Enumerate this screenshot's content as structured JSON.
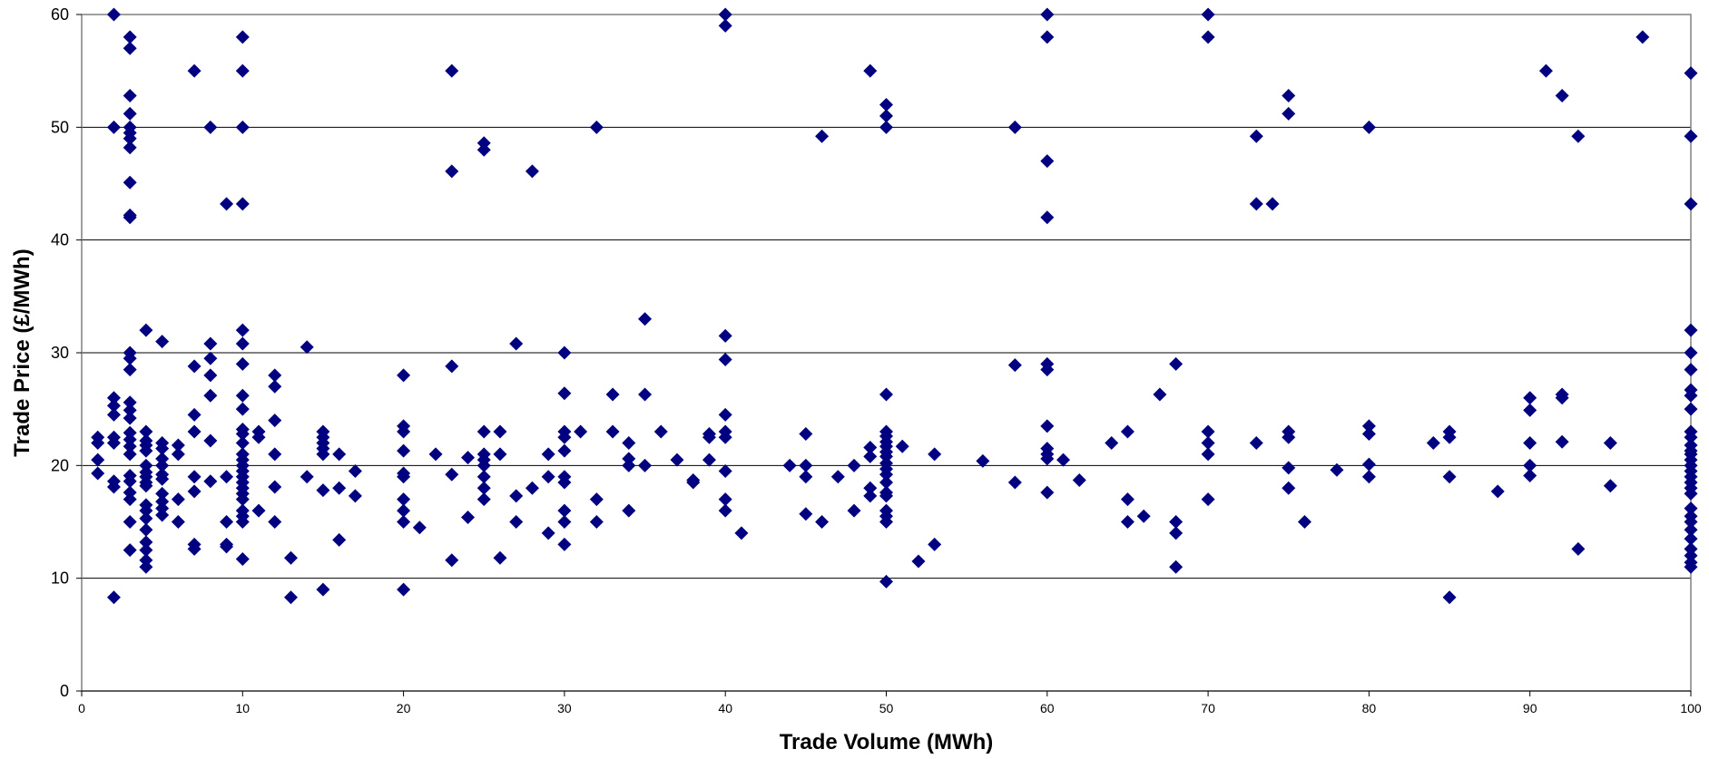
{
  "chart_data": {
    "type": "scatter",
    "title": "",
    "xlabel": "Trade Volume (MWh)",
    "ylabel": "Trade Price (£/MWh)",
    "xlim": [
      0,
      100
    ],
    "ylim": [
      0,
      60
    ],
    "x_ticks": [
      0,
      10,
      20,
      30,
      40,
      50,
      60,
      70,
      80,
      90,
      100
    ],
    "y_ticks": [
      0,
      10,
      20,
      30,
      40,
      50,
      60
    ],
    "grid": "horizontal",
    "legend": "none",
    "marker": "diamond",
    "marker_color": "#000080",
    "points": [
      [
        1,
        22.5
      ],
      [
        1,
        22
      ],
      [
        1,
        20.5
      ],
      [
        1,
        19.3
      ],
      [
        2,
        60
      ],
      [
        2,
        50
      ],
      [
        2,
        26
      ],
      [
        2,
        25.3
      ],
      [
        2,
        24.5
      ],
      [
        2,
        22.5
      ],
      [
        2,
        22
      ],
      [
        2,
        18.6
      ],
      [
        2,
        18.1
      ],
      [
        2,
        8.3
      ],
      [
        3,
        58
      ],
      [
        3,
        57
      ],
      [
        3,
        52.8
      ],
      [
        3,
        51.2
      ],
      [
        3,
        50
      ],
      [
        3,
        49.5
      ],
      [
        3,
        49
      ],
      [
        3,
        48.2
      ],
      [
        3,
        45.1
      ],
      [
        3,
        42.2
      ],
      [
        3,
        42
      ],
      [
        3,
        30
      ],
      [
        3,
        29.5
      ],
      [
        3,
        28.5
      ],
      [
        3,
        25.6
      ],
      [
        3,
        24.9
      ],
      [
        3,
        24.2
      ],
      [
        3,
        22.9
      ],
      [
        3,
        22.3
      ],
      [
        3,
        21.7
      ],
      [
        3,
        21
      ],
      [
        3,
        19.1
      ],
      [
        3,
        18.6
      ],
      [
        3,
        17.6
      ],
      [
        3,
        17
      ],
      [
        3,
        15
      ],
      [
        3,
        12.5
      ],
      [
        4,
        32
      ],
      [
        4,
        23
      ],
      [
        4,
        22.2
      ],
      [
        4,
        21.8
      ],
      [
        4,
        21.3
      ],
      [
        4,
        20
      ],
      [
        4,
        19.4
      ],
      [
        4,
        19
      ],
      [
        4,
        18.5
      ],
      [
        4,
        18.2
      ],
      [
        4,
        16.5
      ],
      [
        4,
        16
      ],
      [
        4,
        15.3
      ],
      [
        4,
        14.3
      ],
      [
        4,
        13.2
      ],
      [
        4,
        12.5
      ],
      [
        4,
        11.6
      ],
      [
        4,
        11
      ],
      [
        5,
        31
      ],
      [
        5,
        22
      ],
      [
        5,
        21.5
      ],
      [
        5,
        20.6
      ],
      [
        5,
        20
      ],
      [
        5,
        19.2
      ],
      [
        5,
        18.8
      ],
      [
        5,
        17.5
      ],
      [
        5,
        16.8
      ],
      [
        5,
        16.2
      ],
      [
        5,
        15.6
      ],
      [
        6,
        21.8
      ],
      [
        6,
        21
      ],
      [
        6,
        17
      ],
      [
        6,
        15
      ],
      [
        7,
        55
      ],
      [
        7,
        28.8
      ],
      [
        7,
        24.5
      ],
      [
        7,
        23
      ],
      [
        7,
        19
      ],
      [
        7,
        17.7
      ],
      [
        7,
        13
      ],
      [
        7,
        12.6
      ],
      [
        8,
        50
      ],
      [
        8,
        30.8
      ],
      [
        8,
        29.5
      ],
      [
        8,
        28
      ],
      [
        8,
        26.2
      ],
      [
        8,
        22.2
      ],
      [
        8,
        18.6
      ],
      [
        9,
        43.2
      ],
      [
        9,
        19
      ],
      [
        9,
        15
      ],
      [
        9,
        13
      ],
      [
        9,
        12.8
      ],
      [
        10,
        58
      ],
      [
        10,
        55
      ],
      [
        10,
        50
      ],
      [
        10,
        43.2
      ],
      [
        10,
        32
      ],
      [
        10,
        30.8
      ],
      [
        10,
        29
      ],
      [
        10,
        26.2
      ],
      [
        10,
        25
      ],
      [
        10,
        23.2
      ],
      [
        10,
        22.8
      ],
      [
        10,
        22
      ],
      [
        10,
        21
      ],
      [
        10,
        20.5
      ],
      [
        10,
        20
      ],
      [
        10,
        19.5
      ],
      [
        10,
        19
      ],
      [
        10,
        18.5
      ],
      [
        10,
        18
      ],
      [
        10,
        17.5
      ],
      [
        10,
        17
      ],
      [
        10,
        16
      ],
      [
        10,
        15.5
      ],
      [
        10,
        15
      ],
      [
        10,
        11.7
      ],
      [
        11,
        23
      ],
      [
        11,
        22.5
      ],
      [
        11,
        16
      ],
      [
        12,
        28
      ],
      [
        12,
        27
      ],
      [
        12,
        24
      ],
      [
        12,
        21
      ],
      [
        12,
        18.1
      ],
      [
        12,
        15
      ],
      [
        13,
        11.8
      ],
      [
        13,
        8.3
      ],
      [
        14,
        30.5
      ],
      [
        14,
        19
      ],
      [
        15,
        23
      ],
      [
        15,
        22.5
      ],
      [
        15,
        22
      ],
      [
        15,
        21.5
      ],
      [
        15,
        21
      ],
      [
        15,
        17.8
      ],
      [
        15,
        9
      ],
      [
        16,
        21
      ],
      [
        16,
        18
      ],
      [
        16,
        13.4
      ],
      [
        17,
        19.5
      ],
      [
        17,
        17.3
      ],
      [
        20,
        28
      ],
      [
        20,
        23.5
      ],
      [
        20,
        23
      ],
      [
        20,
        21.3
      ],
      [
        20,
        19.3
      ],
      [
        20,
        19
      ],
      [
        20,
        17
      ],
      [
        20,
        16
      ],
      [
        20,
        15
      ],
      [
        20,
        9
      ],
      [
        21,
        14.5
      ],
      [
        22,
        21
      ],
      [
        23,
        55
      ],
      [
        23,
        46.1
      ],
      [
        23,
        28.8
      ],
      [
        23,
        19.2
      ],
      [
        23,
        11.6
      ],
      [
        24,
        20.7
      ],
      [
        24,
        15.4
      ],
      [
        25,
        48.6
      ],
      [
        25,
        48
      ],
      [
        25,
        23
      ],
      [
        25,
        21
      ],
      [
        25,
        20.5
      ],
      [
        25,
        20
      ],
      [
        25,
        19
      ],
      [
        25,
        18
      ],
      [
        25,
        17
      ],
      [
        26,
        23
      ],
      [
        26,
        21
      ],
      [
        26,
        11.8
      ],
      [
        27,
        30.8
      ],
      [
        27,
        17.3
      ],
      [
        27,
        15
      ],
      [
        28,
        46.1
      ],
      [
        28,
        18
      ],
      [
        29,
        21
      ],
      [
        29,
        19
      ],
      [
        29,
        14
      ],
      [
        30,
        30
      ],
      [
        30,
        26.4
      ],
      [
        30,
        23
      ],
      [
        30,
        22.5
      ],
      [
        30,
        21.3
      ],
      [
        30,
        19
      ],
      [
        30,
        18.5
      ],
      [
        30,
        16
      ],
      [
        30,
        15
      ],
      [
        30,
        13
      ],
      [
        31,
        23
      ],
      [
        32,
        50
      ],
      [
        32,
        17
      ],
      [
        32,
        15
      ],
      [
        33,
        26.3
      ],
      [
        33,
        23
      ],
      [
        34,
        22
      ],
      [
        34,
        20.6
      ],
      [
        34,
        20
      ],
      [
        34,
        16
      ],
      [
        35,
        33
      ],
      [
        35,
        26.3
      ],
      [
        35,
        20
      ],
      [
        36,
        23
      ],
      [
        37,
        20.5
      ],
      [
        38,
        18.7
      ],
      [
        38,
        18.5
      ],
      [
        39,
        22.8
      ],
      [
        39,
        22.5
      ],
      [
        39,
        20.5
      ],
      [
        40,
        60
      ],
      [
        40,
        59
      ],
      [
        40,
        31.5
      ],
      [
        40,
        29.4
      ],
      [
        40,
        24.5
      ],
      [
        40,
        23
      ],
      [
        40,
        22.5
      ],
      [
        40,
        19.5
      ],
      [
        40,
        17
      ],
      [
        40,
        16
      ],
      [
        41,
        14
      ],
      [
        44,
        20
      ],
      [
        45,
        22.8
      ],
      [
        45,
        20
      ],
      [
        45,
        19
      ],
      [
        45,
        15.7
      ],
      [
        46,
        49.2
      ],
      [
        46,
        15
      ],
      [
        47,
        19
      ],
      [
        48,
        20
      ],
      [
        48,
        16
      ],
      [
        49,
        55
      ],
      [
        49,
        21.6
      ],
      [
        49,
        20.8
      ],
      [
        49,
        18
      ],
      [
        49,
        17.3
      ],
      [
        50,
        52
      ],
      [
        50,
        51
      ],
      [
        50,
        50
      ],
      [
        50,
        26.3
      ],
      [
        50,
        23
      ],
      [
        50,
        22.6
      ],
      [
        50,
        22.1
      ],
      [
        50,
        21.7
      ],
      [
        50,
        21.2
      ],
      [
        50,
        20.8
      ],
      [
        50,
        20.2
      ],
      [
        50,
        19.7
      ],
      [
        50,
        19.2
      ],
      [
        50,
        18.5
      ],
      [
        50,
        17.6
      ],
      [
        50,
        17.3
      ],
      [
        50,
        16
      ],
      [
        50,
        15.5
      ],
      [
        50,
        15
      ],
      [
        50,
        9.7
      ],
      [
        51,
        21.7
      ],
      [
        52,
        11.5
      ],
      [
        53,
        21
      ],
      [
        53,
        13
      ],
      [
        56,
        20.4
      ],
      [
        58,
        50
      ],
      [
        58,
        28.9
      ],
      [
        58,
        18.5
      ],
      [
        60,
        60
      ],
      [
        60,
        58
      ],
      [
        60,
        47
      ],
      [
        60,
        42
      ],
      [
        60,
        29
      ],
      [
        60,
        28.5
      ],
      [
        60,
        23.5
      ],
      [
        60,
        21.5
      ],
      [
        60,
        21
      ],
      [
        60,
        20.6
      ],
      [
        60,
        17.6
      ],
      [
        61,
        20.5
      ],
      [
        62,
        18.7
      ],
      [
        64,
        22
      ],
      [
        65,
        23
      ],
      [
        65,
        17
      ],
      [
        65,
        15
      ],
      [
        66,
        15.5
      ],
      [
        67,
        26.3
      ],
      [
        68,
        29
      ],
      [
        68,
        15
      ],
      [
        68,
        14
      ],
      [
        68,
        11
      ],
      [
        70,
        60
      ],
      [
        70,
        58
      ],
      [
        70,
        23
      ],
      [
        70,
        22
      ],
      [
        70,
        21
      ],
      [
        70,
        17
      ],
      [
        73,
        49.2
      ],
      [
        73,
        43.2
      ],
      [
        73,
        22
      ],
      [
        74,
        43.2
      ],
      [
        75,
        52.8
      ],
      [
        75,
        51.2
      ],
      [
        75,
        23
      ],
      [
        75,
        22.5
      ],
      [
        75,
        19.8
      ],
      [
        75,
        18
      ],
      [
        76,
        15
      ],
      [
        78,
        19.6
      ],
      [
        80,
        50
      ],
      [
        80,
        23.5
      ],
      [
        80,
        22.8
      ],
      [
        80,
        20.1
      ],
      [
        80,
        19
      ],
      [
        84,
        22
      ],
      [
        85,
        23
      ],
      [
        85,
        22.5
      ],
      [
        85,
        19
      ],
      [
        85,
        8.3
      ],
      [
        88,
        17.7
      ],
      [
        90,
        26
      ],
      [
        90,
        24.9
      ],
      [
        90,
        22
      ],
      [
        90,
        20
      ],
      [
        90,
        19.1
      ],
      [
        91,
        55
      ],
      [
        92,
        52.8
      ],
      [
        92,
        26.3
      ],
      [
        92,
        26
      ],
      [
        92,
        22.1
      ],
      [
        93,
        49.2
      ],
      [
        93,
        12.6
      ],
      [
        95,
        22
      ],
      [
        95,
        18.2
      ],
      [
        97,
        58
      ],
      [
        100,
        54.8
      ],
      [
        100,
        49.2
      ],
      [
        100,
        43.2
      ],
      [
        100,
        32
      ],
      [
        100,
        30
      ],
      [
        100,
        28.5
      ],
      [
        100,
        26.7
      ],
      [
        100,
        26.2
      ],
      [
        100,
        25
      ],
      [
        100,
        23
      ],
      [
        100,
        22.5
      ],
      [
        100,
        21.8
      ],
      [
        100,
        21.3
      ],
      [
        100,
        21
      ],
      [
        100,
        20.5
      ],
      [
        100,
        20
      ],
      [
        100,
        19.5
      ],
      [
        100,
        19
      ],
      [
        100,
        18.5
      ],
      [
        100,
        18
      ],
      [
        100,
        17.5
      ],
      [
        100,
        16.2
      ],
      [
        100,
        15.5
      ],
      [
        100,
        15
      ],
      [
        100,
        14.3
      ],
      [
        100,
        13.5
      ],
      [
        100,
        12.6
      ],
      [
        100,
        12
      ],
      [
        100,
        11.4
      ],
      [
        100,
        11
      ]
    ]
  }
}
